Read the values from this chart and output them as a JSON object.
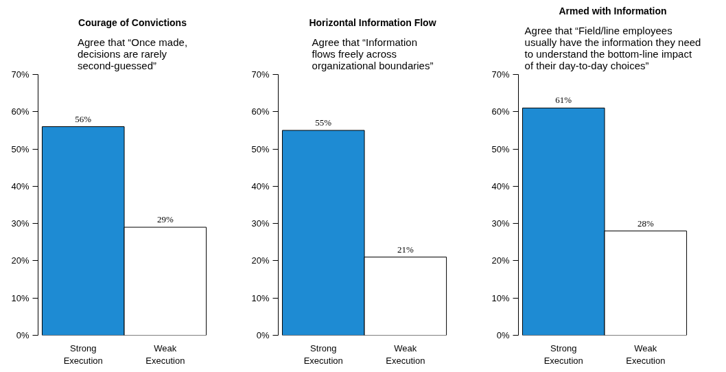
{
  "chart_data": [
    {
      "type": "bar",
      "title": "Courage of Convictions",
      "subtitle": "Agree that “Once made,\ndecisions are rarely\nsecond-guessed”",
      "categories": [
        "Strong\nExecution",
        "Weak\nExecution"
      ],
      "values": [
        56,
        29
      ],
      "colors": [
        "#1e8bd3",
        "#ffffff"
      ],
      "value_labels": [
        "56%",
        "29%"
      ],
      "ylim": [
        0,
        70
      ],
      "yticks": [
        {
          "value": 0,
          "label": "0%"
        },
        {
          "value": 10,
          "label": "10%"
        },
        {
          "value": 20,
          "label": "20%"
        },
        {
          "value": 30,
          "label": "30%"
        },
        {
          "value": 40,
          "label": "40%"
        },
        {
          "value": 50,
          "label": "50%"
        },
        {
          "value": 60,
          "label": "60%"
        },
        {
          "value": 70,
          "label": "70%"
        }
      ]
    },
    {
      "type": "bar",
      "title": "Horizontal Information Flow",
      "subtitle": "Agree that “Information\nflows freely across\norganizational boundaries”",
      "categories": [
        "Strong\nExecution",
        "Weak\nExecution"
      ],
      "values": [
        55,
        21
      ],
      "colors": [
        "#1e8bd3",
        "#ffffff"
      ],
      "value_labels": [
        "55%",
        "21%"
      ],
      "ylim": [
        0,
        70
      ],
      "yticks": [
        {
          "value": 0,
          "label": "0%"
        },
        {
          "value": 10,
          "label": "10%"
        },
        {
          "value": 20,
          "label": "20%"
        },
        {
          "value": 30,
          "label": "30%"
        },
        {
          "value": 40,
          "label": "40%"
        },
        {
          "value": 50,
          "label": "50%"
        },
        {
          "value": 60,
          "label": "60%"
        },
        {
          "value": 70,
          "label": "70%"
        }
      ]
    },
    {
      "type": "bar",
      "title": "Armed with Information",
      "subtitle": "Agree that “Field/line employees\nusually have the information they need\nto understand the bottom-line impact\nof their day-to-day choices”",
      "categories": [
        "Strong\nExecution",
        "Weak\nExecution"
      ],
      "values": [
        61,
        28
      ],
      "colors": [
        "#1e8bd3",
        "#ffffff"
      ],
      "value_labels": [
        "61%",
        "28%"
      ],
      "ylim": [
        0,
        70
      ],
      "yticks": [
        {
          "value": 0,
          "label": "0%"
        },
        {
          "value": 10,
          "label": "10%"
        },
        {
          "value": 20,
          "label": "20%"
        },
        {
          "value": 30,
          "label": "30%"
        },
        {
          "value": 40,
          "label": "40%"
        },
        {
          "value": 50,
          "label": "50%"
        },
        {
          "value": 60,
          "label": "60%"
        },
        {
          "value": 70,
          "label": "70%"
        }
      ]
    }
  ]
}
